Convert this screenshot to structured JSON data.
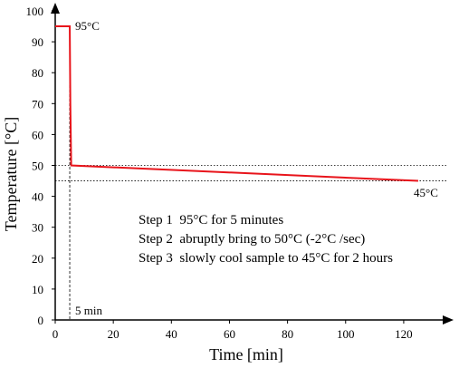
{
  "chart_data": {
    "type": "line",
    "xlabel": "Time [min]",
    "ylabel": "Temperature [°C]",
    "xlim": [
      0,
      130
    ],
    "ylim": [
      0,
      100
    ],
    "xticks": [
      0,
      20,
      40,
      60,
      80,
      100,
      120
    ],
    "yticks": [
      0,
      10,
      20,
      30,
      40,
      50,
      60,
      70,
      80,
      90,
      100
    ],
    "grid": false,
    "series": [
      {
        "color": "#e8141b",
        "x": [
          0,
          5,
          5.2,
          5.5,
          125
        ],
        "y": [
          95,
          95,
          70,
          50,
          45
        ]
      }
    ],
    "reference_lines": [
      {
        "orientation": "horizontal",
        "value": 50,
        "style": "dotted"
      },
      {
        "orientation": "horizontal",
        "value": 45,
        "style": "dotted"
      },
      {
        "orientation": "vertical",
        "value": 5,
        "style": "dashed"
      }
    ],
    "annotations": {
      "start_temp": "95°C",
      "end_temp": "45°C",
      "time_marker": "5 min"
    },
    "steps": [
      "Step 1  95°C for 5 minutes",
      "Step 2  abruptly bring to 50°C (-2°C /sec)",
      "Step 3  slowly cool sample to 45°C for 2 hours"
    ]
  }
}
